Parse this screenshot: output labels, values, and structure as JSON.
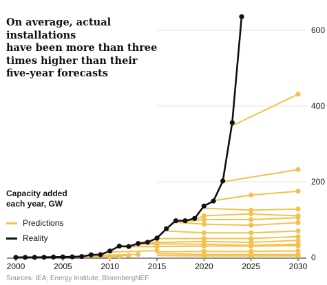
{
  "chart_data": {
    "type": "line",
    "title_lines": [
      "On average, actual installations",
      "have been more than three",
      "times higher than their",
      "five-year forecasts"
    ],
    "legend_title_lines": [
      "Capacity added",
      "each year, GW"
    ],
    "legend": [
      {
        "label": "Predictions",
        "color": "#f2c14e"
      },
      {
        "label": "Reality",
        "color": "#111111"
      }
    ],
    "source": "Sources: IEA; Energy Institute; BloombergNEF",
    "x_ticks": [
      2000,
      2005,
      2010,
      2015,
      2020,
      2025,
      2030
    ],
    "y_ticks": [
      0,
      200,
      400,
      600
    ],
    "xlim": [
      2000,
      2030
    ],
    "ylim": [
      0,
      650
    ],
    "y_axis_side": "right",
    "grid": "horizontal",
    "reality": {
      "name": "Reality",
      "color": "#111111",
      "points": [
        [
          2000,
          0.3
        ],
        [
          2001,
          0.3
        ],
        [
          2002,
          0.4
        ],
        [
          2003,
          0.6
        ],
        [
          2004,
          1.1
        ],
        [
          2005,
          1.5
        ],
        [
          2006,
          1.6
        ],
        [
          2007,
          2.5
        ],
        [
          2008,
          7
        ],
        [
          2009,
          7.5
        ],
        [
          2010,
          17
        ],
        [
          2011,
          30
        ],
        [
          2012,
          29
        ],
        [
          2013,
          37
        ],
        [
          2014,
          40
        ],
        [
          2015,
          51
        ],
        [
          2016,
          76
        ],
        [
          2017,
          97
        ],
        [
          2018,
          97
        ],
        [
          2019,
          103
        ],
        [
          2020,
          136
        ],
        [
          2021,
          149
        ],
        [
          2022,
          202
        ],
        [
          2023,
          356
        ],
        [
          2024,
          636
        ]
      ]
    },
    "predictions": {
      "name": "Predictions",
      "color": "#f2c14e",
      "lines": [
        [
          [
            2006,
            1.5
          ],
          [
            2010,
            2
          ]
        ],
        [
          [
            2007,
            2
          ],
          [
            2011,
            3
          ]
        ],
        [
          [
            2008,
            3
          ],
          [
            2012,
            5
          ]
        ],
        [
          [
            2009,
            6
          ],
          [
            2013,
            8
          ]
        ],
        [
          [
            2010,
            14
          ],
          [
            2015,
            18
          ]
        ],
        [
          [
            2011,
            28
          ],
          [
            2015,
            29
          ],
          [
            2020,
            30
          ],
          [
            2025,
            30
          ],
          [
            2030,
            32
          ]
        ],
        [
          [
            2012,
            29
          ],
          [
            2015,
            29
          ],
          [
            2020,
            30
          ],
          [
            2025,
            30
          ],
          [
            2030,
            31
          ]
        ],
        [
          [
            2013,
            34
          ],
          [
            2015,
            36
          ],
          [
            2020,
            35
          ],
          [
            2025,
            32
          ],
          [
            2030,
            35
          ]
        ],
        [
          [
            2014,
            38
          ],
          [
            2015,
            40
          ],
          [
            2020,
            42
          ],
          [
            2025,
            40
          ],
          [
            2030,
            45
          ]
        ],
        [
          [
            2015,
            50
          ],
          [
            2020,
            50
          ],
          [
            2025,
            50
          ],
          [
            2030,
            55
          ]
        ],
        [
          [
            2016,
            70
          ],
          [
            2020,
            65
          ],
          [
            2025,
            65
          ],
          [
            2030,
            70
          ]
        ],
        [
          [
            2017,
            93
          ],
          [
            2020,
            88
          ],
          [
            2025,
            85
          ],
          [
            2030,
            92
          ]
        ],
        [
          [
            2018,
            95
          ],
          [
            2020,
            100
          ],
          [
            2025,
            100
          ],
          [
            2030,
            105
          ]
        ],
        [
          [
            2019,
            100
          ],
          [
            2020,
            110
          ],
          [
            2025,
            115
          ],
          [
            2030,
            110
          ]
        ],
        [
          [
            2020,
            130
          ],
          [
            2025,
            125
          ],
          [
            2030,
            128
          ]
        ],
        [
          [
            2021,
            150
          ],
          [
            2025,
            165
          ],
          [
            2030,
            175
          ]
        ],
        [
          [
            2022,
            200
          ],
          [
            2030,
            232
          ]
        ],
        [
          [
            2023,
            348
          ],
          [
            2030,
            431
          ]
        ],
        [
          [
            2015,
            15
          ],
          [
            2020,
            16
          ],
          [
            2025,
            16
          ],
          [
            2030,
            17
          ]
        ],
        [
          [
            2015,
            10
          ],
          [
            2020,
            8
          ],
          [
            2025,
            8
          ],
          [
            2030,
            8
          ]
        ],
        [
          [
            2015,
            5
          ],
          [
            2020,
            4
          ],
          [
            2025,
            4
          ],
          [
            2030,
            4
          ]
        ]
      ]
    }
  }
}
